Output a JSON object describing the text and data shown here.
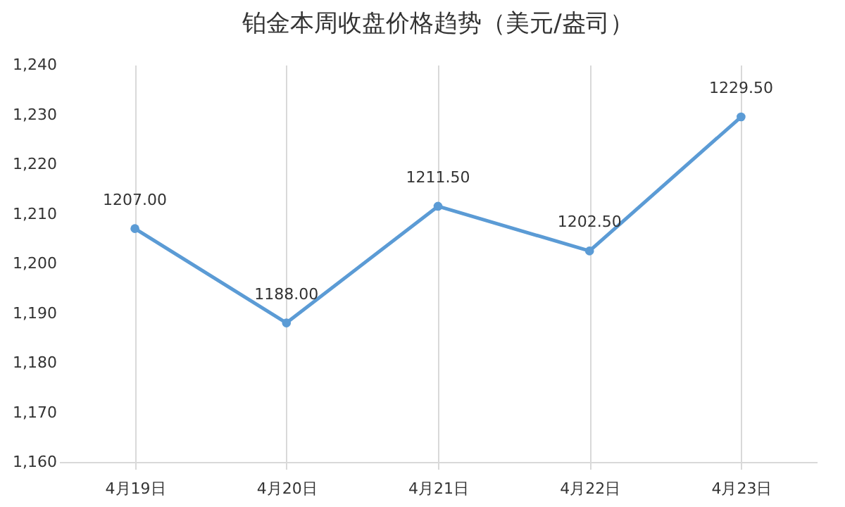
{
  "chart_data": {
    "type": "line",
    "title": "铂金本周收盘价格趋势（美元/盎司）",
    "categories": [
      "4月19日",
      "4月20日",
      "4月21日",
      "4月22日",
      "4月23日"
    ],
    "series": [
      {
        "color": "#5b9bd5",
        "values": [
          1207,
          1188,
          1211.5,
          1202.5,
          1229.5
        ],
        "value_labels": [
          "1207.00",
          "1188.00",
          "1211.50",
          "1202.50",
          "1229.50"
        ]
      }
    ],
    "ylim": [
      1160,
      1240
    ],
    "yticks": [
      {
        "value": 1160,
        "label": "1,160"
      },
      {
        "value": 1170,
        "label": "1,170"
      },
      {
        "value": 1180,
        "label": "1,180"
      },
      {
        "value": 1190,
        "label": "1,190"
      },
      {
        "value": 1200,
        "label": "1,200"
      },
      {
        "value": 1210,
        "label": "1,210"
      },
      {
        "value": 1220,
        "label": "1,220"
      },
      {
        "value": 1230,
        "label": "1,230"
      },
      {
        "value": 1240,
        "label": "1,240"
      }
    ],
    "grid": "x",
    "marker": "circle",
    "line_style": "solid"
  }
}
